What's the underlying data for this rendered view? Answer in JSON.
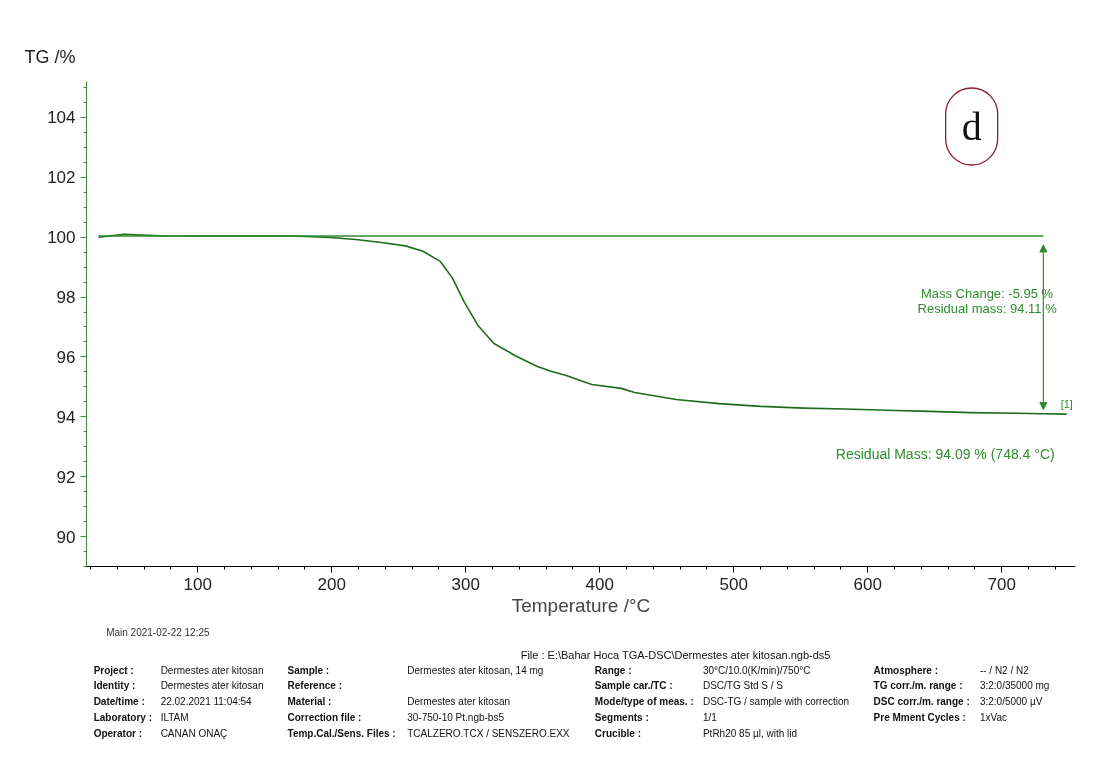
{
  "chart_data": {
    "type": "line",
    "xlabel": "Temperature /°C",
    "ylabel": "TG /%",
    "xlim": [
      17,
      755
    ],
    "ylim": [
      89,
      105.2
    ],
    "xticks": [
      100,
      200,
      300,
      400,
      500,
      600,
      700
    ],
    "yticks": [
      90,
      92,
      94,
      96,
      98,
      100,
      102,
      104
    ],
    "grid": false,
    "marker": "none",
    "line_style": "solid",
    "series": [
      {
        "color": "#1e6b1e",
        "x": [
          26,
          45,
          76,
          101,
          142,
          171,
          199,
          218,
          237,
          255,
          268,
          281,
          290,
          299,
          309,
          321,
          337,
          353,
          363,
          375,
          394,
          416,
          426,
          457,
          489,
          520,
          552,
          583,
          614,
          646,
          677,
          709,
          731,
          748.4
        ],
        "values": [
          100.0,
          100.1,
          100.04,
          100.03,
          100.05,
          100.04,
          99.99,
          99.92,
          99.82,
          99.71,
          99.53,
          99.19,
          98.64,
          97.82,
          97.06,
          96.45,
          96.04,
          95.69,
          95.53,
          95.38,
          95.08,
          94.95,
          94.81,
          94.58,
          94.44,
          94.35,
          94.29,
          94.26,
          94.22,
          94.18,
          94.14,
          94.12,
          94.1,
          94.09
        ]
      },
      {
        "color": "#2e8b2e",
        "x": [
          26,
          731
        ],
        "values": [
          100.04,
          100.04
        ]
      }
    ],
    "annotations": [
      "d",
      "Mass Change:   -5.95 %",
      "Residual mass:  94.11 %",
      {
        "text": "Residual Mass: 94.09 % (748.4 °C)",
        "x": 748.4,
        "y": 94.09
      },
      {
        "text": "[1]",
        "x": 748.4,
        "y": 94.09
      },
      "Main   2021-02-22 12:25",
      "File :  E:\\Bahar Hoca TGA-DSC\\Dermestes ater kitosan.ngb-ds5",
      "Project :",
      "Dermestes ater kitosan",
      "Sample :",
      "Dermestes ater kitosan, 14 mg",
      "Range :",
      "30°C/10.0(K/min)/750°C",
      "Atmosphere :",
      "-- / N2 / N2",
      "Identity :",
      "Dermestes ater kitosan",
      "Reference :",
      "Sample car./TC :",
      "DSC/TG Std S / S",
      "TG corr./m. range :",
      "3:2:0/35000 mg",
      "Date/time :",
      "22.02.2021 11:04:54",
      "Material :",
      "Dermestes ater kitosan",
      "Mode/type of meas. :",
      "DSC-TG / sample with correction",
      "DSC corr./m. range :",
      "3:2:0/5000 µV",
      "Laboratory :",
      "ILTAM",
      "Correction file :",
      "30-750-10 Pt.ngb-bs5",
      "Segments :",
      "1/1",
      "Pre Mment Cycles :",
      "1xVac",
      "Operator :",
      "CANAN ONAÇ",
      "Temp.Cal./Sens. Files :",
      "TCALZERO.TCX / SENSZERO.EXX",
      "Crucible :",
      "PtRh20 85 µl, with lid"
    ]
  }
}
